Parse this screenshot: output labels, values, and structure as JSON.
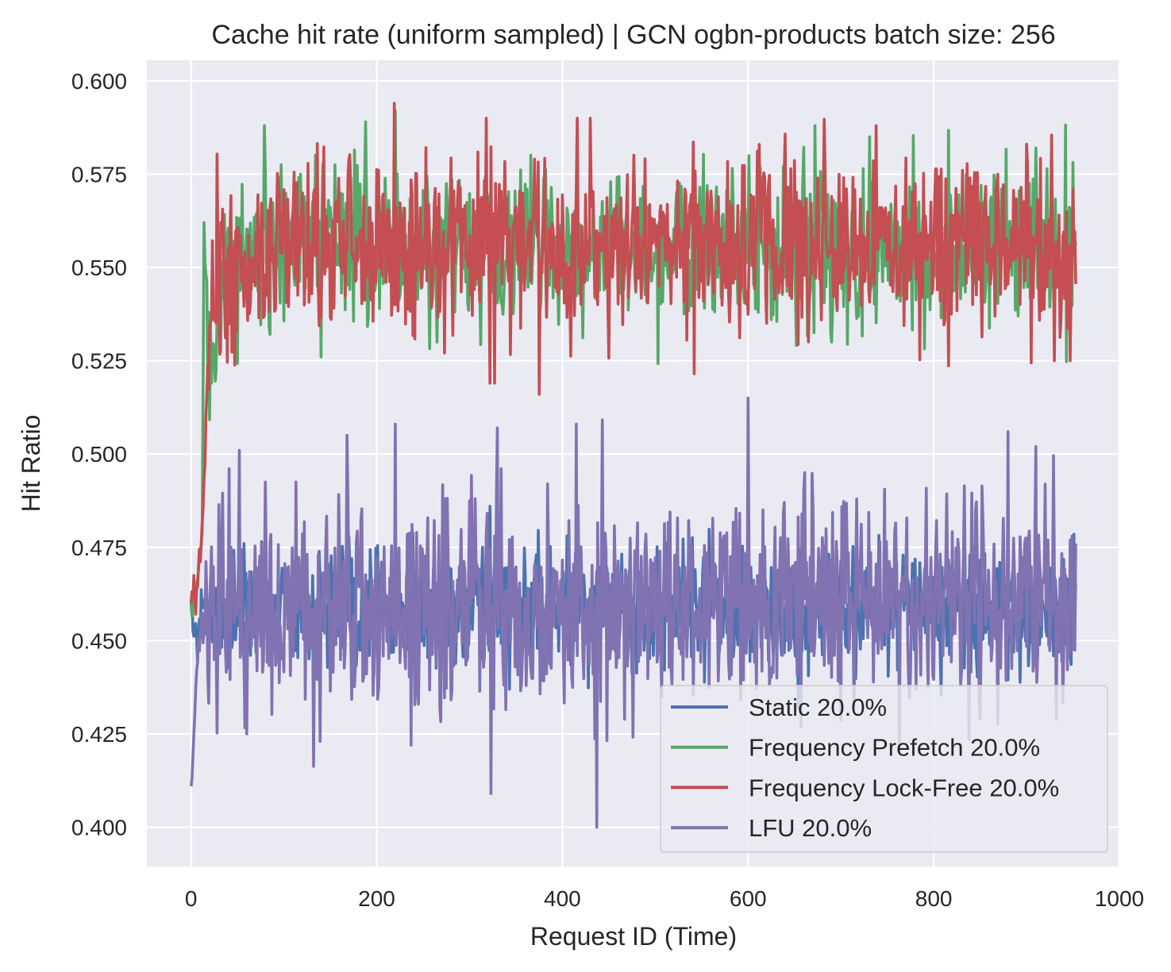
{
  "chart_data": {
    "type": "line",
    "title": "Cache hit rate (uniform sampled) | GCN ogbn-products batch size: 256",
    "xlabel": "Request ID (Time)",
    "ylabel": "Hit Ratio",
    "xlim": [
      -47.6,
      1000
    ],
    "ylim": [
      0.3895,
      0.6055
    ],
    "xticks": [
      0,
      200,
      400,
      600,
      800,
      1000
    ],
    "xtick_labels": [
      "0",
      "200",
      "400",
      "600",
      "800",
      "1000"
    ],
    "yticks": [
      0.4,
      0.425,
      0.45,
      0.475,
      0.5,
      0.525,
      0.55,
      0.575,
      0.6
    ],
    "ytick_labels": [
      "0.400",
      "0.425",
      "0.450",
      "0.475",
      "0.500",
      "0.525",
      "0.550",
      "0.575",
      "0.600"
    ],
    "grid": true,
    "legend_position": "lower right",
    "x_count": 954,
    "series": [
      {
        "name": "Static 20.0%",
        "color": "#4c72b0",
        "mean": 0.458,
        "noise": 0.0085,
        "start": 0.46,
        "anchors": [
          [
            0,
            0.46
          ],
          [
            5,
            0.452
          ],
          [
            13,
            0.458
          ],
          [
            90,
            0.459
          ],
          [
            320,
            0.461
          ],
          [
            520,
            0.458
          ],
          [
            954,
            0.458
          ]
        ],
        "peaks": [
          [
            57,
            0.476
          ],
          [
            170,
            0.478
          ],
          [
            322,
            0.486
          ],
          [
            600,
            0.472
          ],
          [
            760,
            0.471
          ]
        ]
      },
      {
        "name": "Frequency Prefetch 20.0%",
        "color": "#55a868",
        "mean": 0.556,
        "noise": 0.0105,
        "start": 0.46,
        "anchors": [
          [
            0,
            0.46
          ],
          [
            8,
            0.47
          ],
          [
            12,
            0.482
          ],
          [
            14,
            0.559
          ],
          [
            20,
            0.53
          ],
          [
            35,
            0.548
          ],
          [
            80,
            0.556
          ],
          [
            954,
            0.556
          ]
        ],
        "peaks": [
          [
            79,
            0.588
          ],
          [
            188,
            0.589
          ],
          [
            220,
            0.592
          ],
          [
            672,
            0.588
          ],
          [
            910,
            0.582
          ],
          [
            140,
            0.526
          ],
          [
            265,
            0.53
          ],
          [
            690,
            0.53
          ]
        ]
      },
      {
        "name": "Frequency Lock-Free 20.0%",
        "color": "#c44e52",
        "mean": 0.556,
        "noise": 0.0115,
        "start": 0.46,
        "anchors": [
          [
            0,
            0.46
          ],
          [
            8,
            0.47
          ],
          [
            13,
            0.481
          ],
          [
            17,
            0.512
          ],
          [
            22,
            0.545
          ],
          [
            35,
            0.548
          ],
          [
            80,
            0.556
          ],
          [
            954,
            0.556
          ]
        ],
        "peaks": [
          [
            219,
            0.594
          ],
          [
            416,
            0.59
          ],
          [
            430,
            0.59
          ],
          [
            738,
            0.588
          ],
          [
            900,
            0.583
          ],
          [
            375,
            0.516
          ],
          [
            322,
            0.519
          ],
          [
            327,
            0.519
          ],
          [
            930,
            0.525
          ],
          [
            947,
            0.525
          ]
        ]
      },
      {
        "name": "LFU 20.0%",
        "color": "#8172b2",
        "mean": 0.461,
        "noise": 0.0145,
        "start": 0.411,
        "anchors": [
          [
            0,
            0.411
          ],
          [
            4,
            0.43
          ],
          [
            8,
            0.45
          ],
          [
            20,
            0.458
          ],
          [
            954,
            0.461
          ]
        ],
        "peaks": [
          [
            437,
            0.4
          ],
          [
            323,
            0.409
          ],
          [
            600,
            0.515
          ],
          [
            220,
            0.508
          ],
          [
            330,
            0.507
          ],
          [
            168,
            0.505
          ],
          [
            415,
            0.508
          ],
          [
            880,
            0.506
          ],
          [
            910,
            0.502
          ],
          [
            52,
            0.501
          ],
          [
            139,
            0.423
          ],
          [
            60,
            0.425
          ],
          [
            237,
            0.422
          ]
        ]
      }
    ]
  }
}
